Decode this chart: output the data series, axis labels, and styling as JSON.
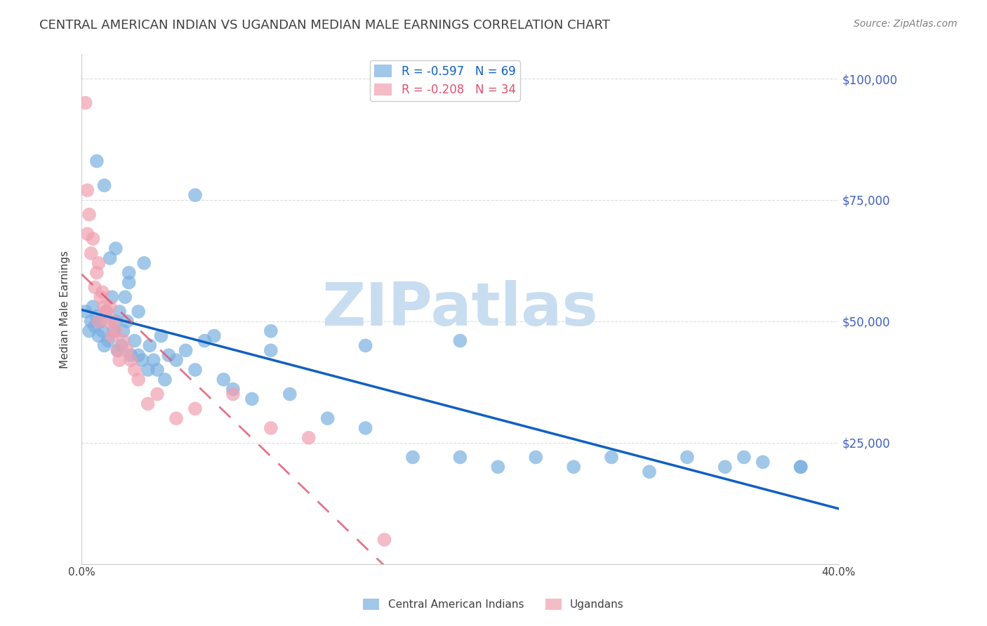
{
  "title": "CENTRAL AMERICAN INDIAN VS UGANDAN MEDIAN MALE EARNINGS CORRELATION CHART",
  "source": "Source: ZipAtlas.com",
  "ylabel": "Median Male Earnings",
  "xmin": 0.0,
  "xmax": 0.4,
  "ymin": 0,
  "ymax": 105000,
  "legend_label_blue": "Central American Indians",
  "legend_label_pink": "Ugandans",
  "dot_color_blue": "#7ab0e0",
  "dot_color_pink": "#f0a0b0",
  "line_color_blue": "#1060c0",
  "line_color_pink": "#e05070",
  "watermark_color": "#c8ddf0",
  "title_color": "#404040",
  "source_color": "#808080",
  "axis_label_color": "#404040",
  "right_tick_color": "#4060c0",
  "background_color": "#ffffff",
  "grid_color": "#dddddd",
  "blue_points_x": [
    0.002,
    0.004,
    0.005,
    0.006,
    0.007,
    0.008,
    0.009,
    0.01,
    0.011,
    0.012,
    0.013,
    0.014,
    0.015,
    0.016,
    0.017,
    0.018,
    0.019,
    0.02,
    0.021,
    0.022,
    0.023,
    0.024,
    0.025,
    0.026,
    0.028,
    0.03,
    0.032,
    0.033,
    0.035,
    0.036,
    0.038,
    0.04,
    0.042,
    0.044,
    0.046,
    0.05,
    0.055,
    0.06,
    0.065,
    0.07,
    0.075,
    0.08,
    0.09,
    0.1,
    0.11,
    0.13,
    0.15,
    0.175,
    0.2,
    0.22,
    0.24,
    0.26,
    0.28,
    0.3,
    0.32,
    0.34,
    0.36,
    0.38,
    0.008,
    0.012,
    0.018,
    0.025,
    0.03,
    0.06,
    0.1,
    0.15,
    0.2,
    0.35,
    0.38
  ],
  "blue_points_y": [
    52000,
    48000,
    50000,
    53000,
    49000,
    51000,
    47000,
    50000,
    48000,
    45000,
    52000,
    46000,
    63000,
    55000,
    48000,
    50000,
    44000,
    52000,
    45000,
    48000,
    55000,
    50000,
    58000,
    43000,
    46000,
    43000,
    42000,
    62000,
    40000,
    45000,
    42000,
    40000,
    47000,
    38000,
    43000,
    42000,
    44000,
    40000,
    46000,
    47000,
    38000,
    36000,
    34000,
    44000,
    35000,
    30000,
    28000,
    22000,
    22000,
    20000,
    22000,
    20000,
    22000,
    19000,
    22000,
    20000,
    21000,
    20000,
    83000,
    78000,
    65000,
    60000,
    52000,
    76000,
    48000,
    45000,
    46000,
    22000,
    20000
  ],
  "pink_points_x": [
    0.002,
    0.003,
    0.004,
    0.005,
    0.006,
    0.007,
    0.008,
    0.009,
    0.01,
    0.011,
    0.012,
    0.013,
    0.014,
    0.015,
    0.016,
    0.017,
    0.018,
    0.019,
    0.02,
    0.022,
    0.024,
    0.026,
    0.028,
    0.03,
    0.035,
    0.04,
    0.05,
    0.06,
    0.08,
    0.1,
    0.12,
    0.16,
    0.003,
    0.009
  ],
  "pink_points_y": [
    95000,
    68000,
    72000,
    64000,
    67000,
    57000,
    60000,
    62000,
    55000,
    56000,
    53000,
    52000,
    50000,
    53000,
    47000,
    50000,
    48000,
    44000,
    42000,
    46000,
    44000,
    42000,
    40000,
    38000,
    33000,
    35000,
    30000,
    32000,
    35000,
    28000,
    26000,
    5000,
    77000,
    50000
  ]
}
